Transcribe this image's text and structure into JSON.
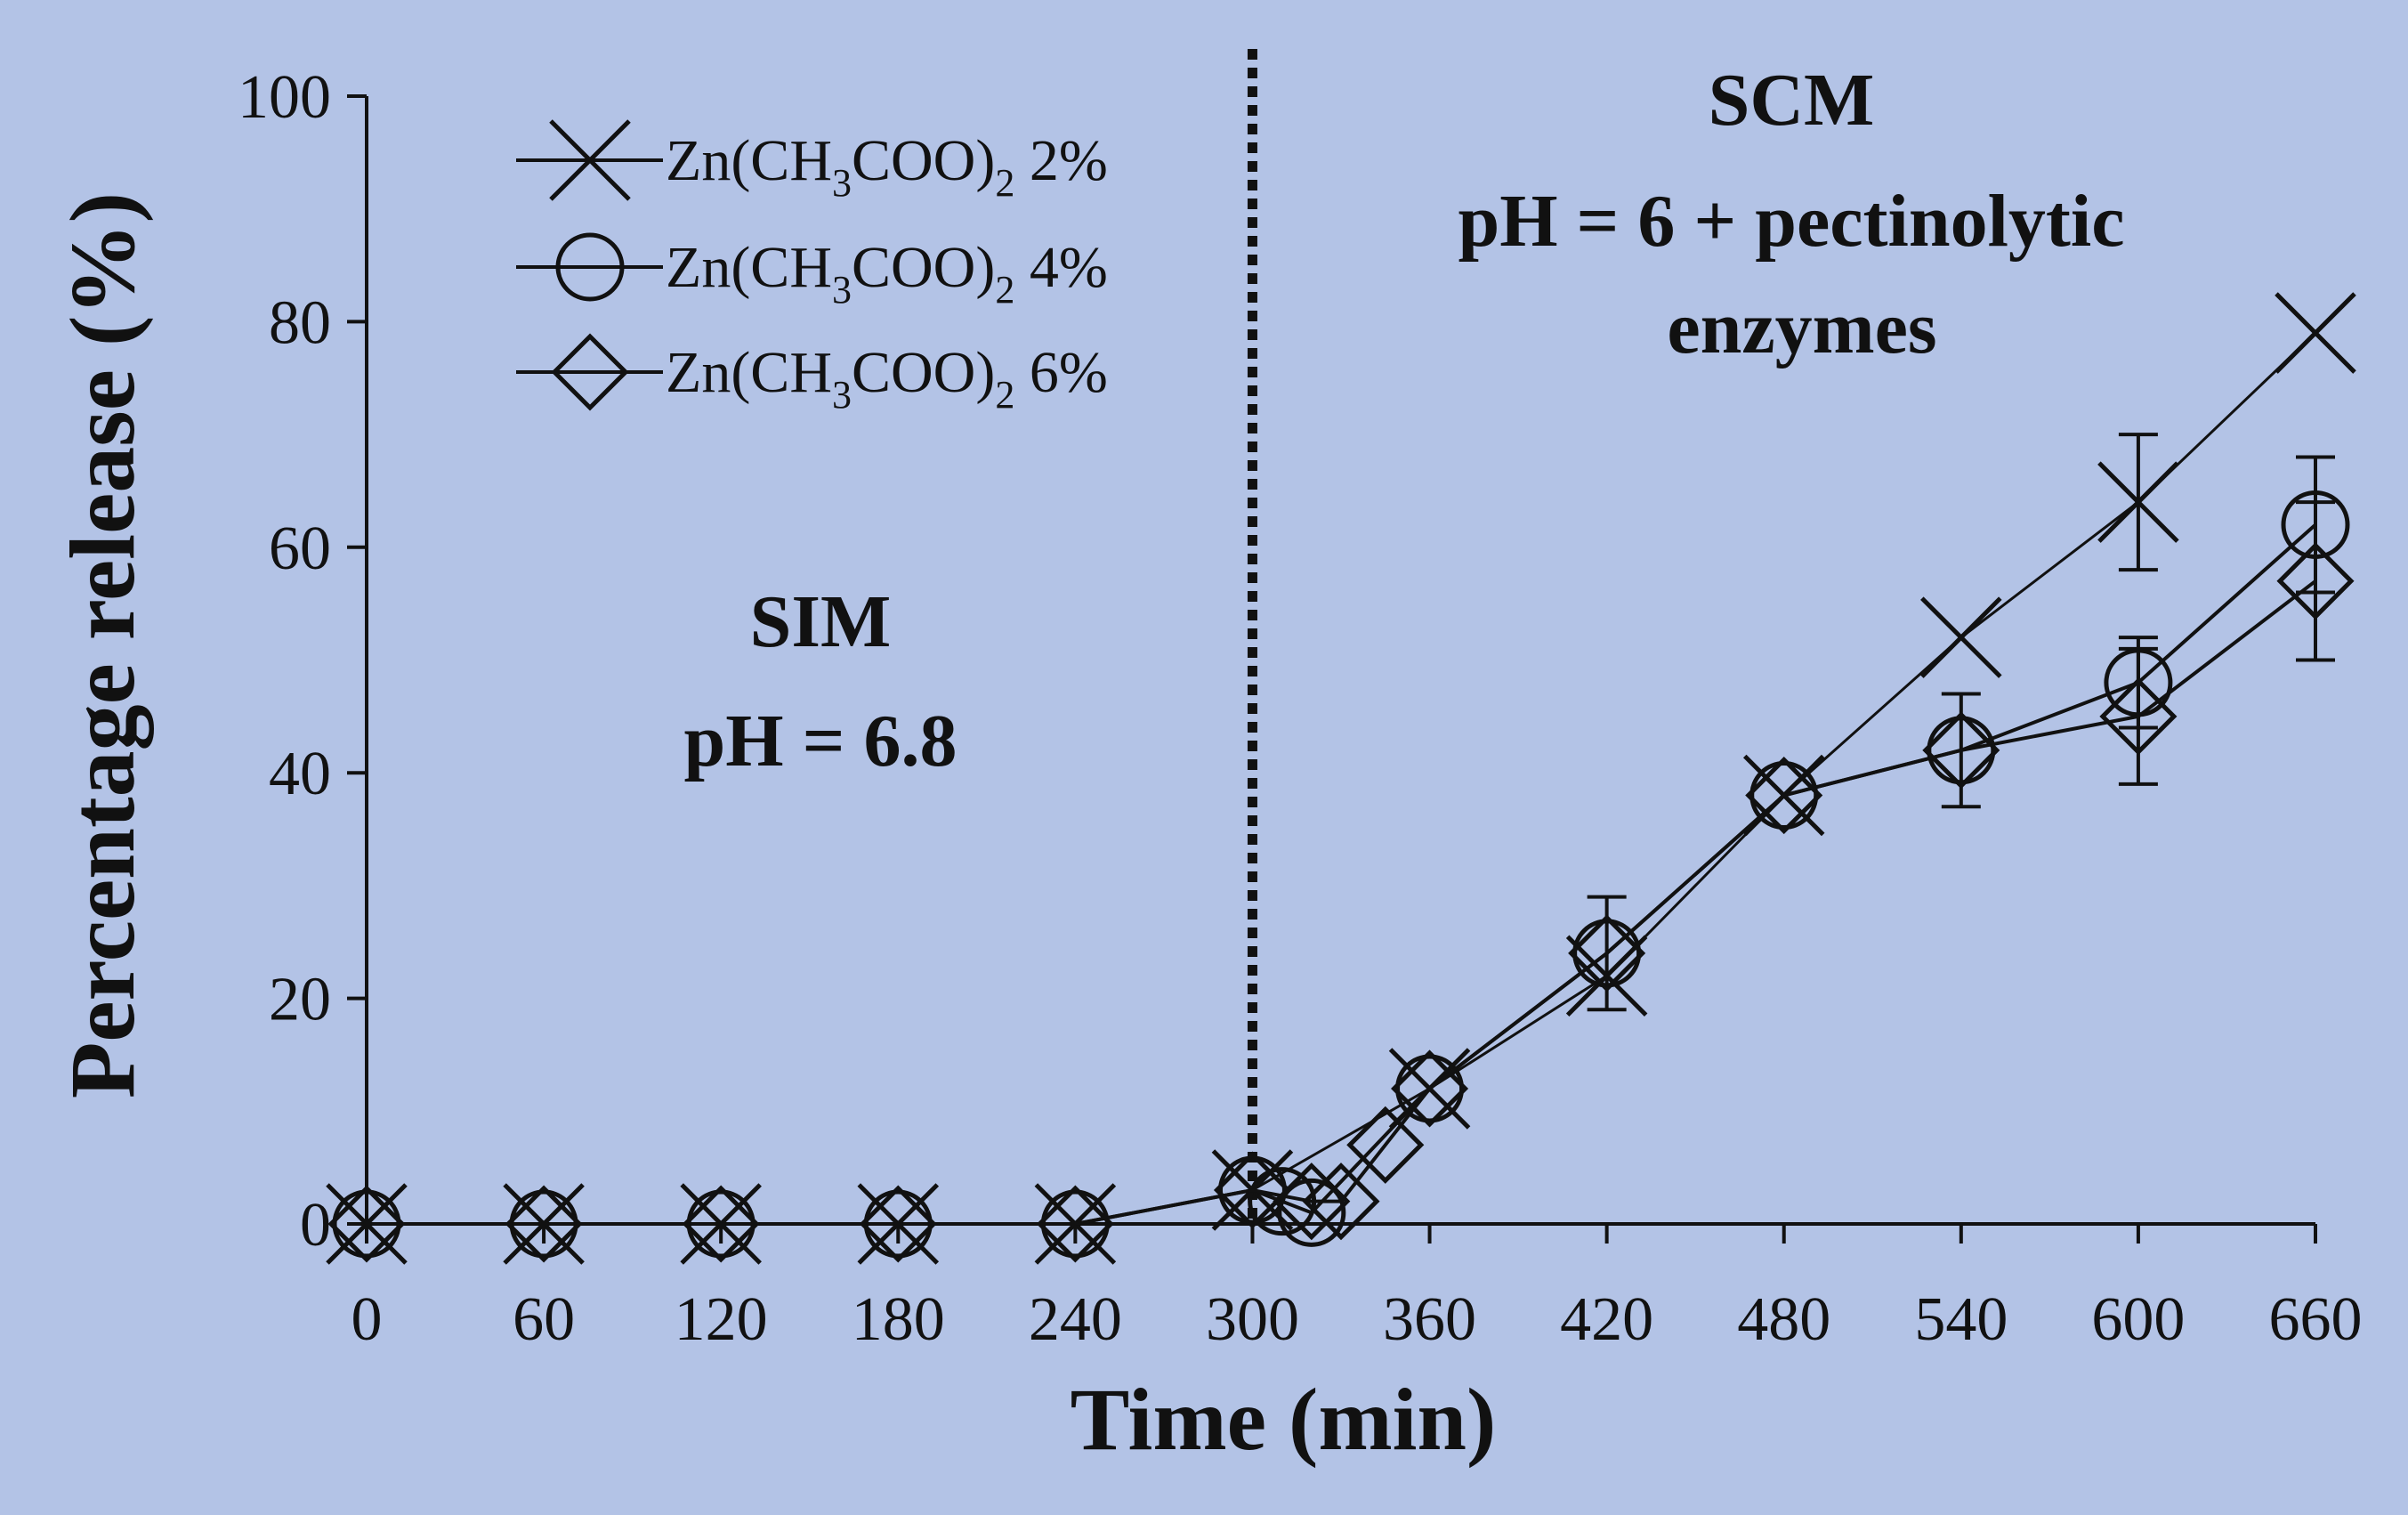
{
  "chart_data": {
    "type": "line",
    "xlabel": "Time (min)",
    "ylabel": "Percentage release (%)",
    "xlim": [
      0,
      660
    ],
    "ylim": [
      0,
      100
    ],
    "x_ticks": [
      "0",
      "60",
      "120",
      "180",
      "240",
      "300",
      "360",
      "420",
      "480",
      "540",
      "600",
      "660"
    ],
    "y_ticks": [
      "0",
      "20",
      "40",
      "60",
      "80",
      "100"
    ],
    "grid": false,
    "legend_position": "top-left",
    "colors": {
      "background": "#b3c3e6",
      "ink": "#111111"
    },
    "phase_divider_x": 300,
    "annotations": [
      {
        "id": "sim",
        "lines": [
          "SIM",
          "pH = 6.8"
        ]
      },
      {
        "id": "scm",
        "lines": [
          "SCM",
          "pH = 6 + pectinolytic",
          "enzymes"
        ]
      }
    ],
    "series": [
      {
        "name": "Zn(CH3COO)2 2%",
        "legend_parts": [
          "Zn(CH",
          "3",
          "COO)",
          "2",
          " 2%"
        ],
        "marker": "x",
        "x": [
          0,
          60,
          120,
          180,
          240,
          300,
          360,
          420,
          480,
          540,
          600,
          660
        ],
        "y": [
          0,
          0,
          0,
          0,
          0,
          3,
          12,
          22,
          38,
          52,
          64,
          79
        ],
        "error": [
          0,
          0,
          0,
          0,
          0,
          0,
          0,
          0,
          0,
          0,
          6,
          0
        ]
      },
      {
        "name": "Zn(CH3COO)2 4%",
        "legend_parts": [
          "Zn(CH",
          "3",
          "COO)",
          "2",
          " 4%"
        ],
        "marker": "circle",
        "x": [
          0,
          60,
          120,
          180,
          240,
          300,
          310,
          320,
          360,
          420,
          480,
          540,
          600,
          660
        ],
        "y": [
          0,
          0,
          0,
          0,
          0,
          3,
          2,
          1,
          12,
          24,
          38,
          42,
          48,
          62
        ],
        "error": [
          0,
          0,
          0,
          0,
          0,
          0,
          0,
          0,
          0,
          5,
          0,
          0,
          4,
          6
        ]
      },
      {
        "name": "Zn(CH3COO)2 6%",
        "legend_parts": [
          "Zn(CH",
          "3",
          "COO)",
          "2",
          " 6%"
        ],
        "marker": "diamond",
        "x": [
          0,
          60,
          120,
          180,
          240,
          300,
          320,
          330,
          345,
          360,
          420,
          480,
          540,
          600,
          660
        ],
        "y": [
          0,
          0,
          0,
          0,
          0,
          3,
          2,
          2,
          7,
          12,
          24,
          38,
          42,
          45,
          57
        ],
        "error": [
          0,
          0,
          0,
          0,
          0,
          0,
          0,
          0,
          0,
          0,
          0,
          0,
          5,
          6,
          7
        ]
      }
    ]
  }
}
